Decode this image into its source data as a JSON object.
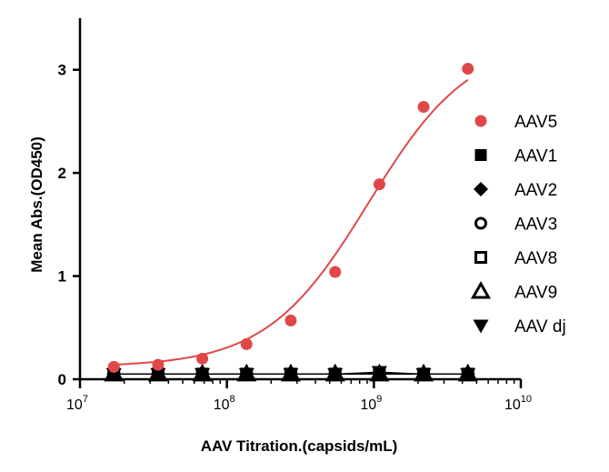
{
  "chart_data": {
    "type": "scatter",
    "xscale": "log",
    "xlabel": "AAV Titration.(capsids/mL)",
    "ylabel": "Mean Abs.(OD450)",
    "xlim": [
      10000000,
      10000000000
    ],
    "ylim": [
      0,
      3.5
    ],
    "xticks": [
      {
        "base": "10",
        "exp": "7",
        "value": 10000000
      },
      {
        "base": "10",
        "exp": "8",
        "value": 100000000
      },
      {
        "base": "10",
        "exp": "9",
        "value": 1000000000
      },
      {
        "base": "10",
        "exp": "10",
        "value": 10000000000
      }
    ],
    "yticks": [
      {
        "label": "0",
        "value": 0
      },
      {
        "label": "1",
        "value": 1
      },
      {
        "label": "2",
        "value": 2
      },
      {
        "label": "3",
        "value": 3
      }
    ],
    "x": [
      17000000,
      34000000,
      68000000,
      136000000,
      272000000,
      545000000,
      1090000000,
      2180000000,
      4360000000
    ],
    "series": [
      {
        "name": "AAV5",
        "marker": "circle",
        "color": "#e04848",
        "fit_curve": true,
        "values": [
          0.12,
          0.14,
          0.2,
          0.34,
          0.57,
          1.04,
          1.89,
          2.64,
          3.01
        ]
      },
      {
        "name": "AAV1",
        "marker": "square-filled",
        "color": "#000000",
        "values": [
          0.05,
          0.05,
          0.05,
          0.05,
          0.05,
          0.05,
          0.06,
          0.05,
          0.05
        ]
      },
      {
        "name": "AAV2",
        "marker": "diamond",
        "color": "#000000",
        "values": [
          0.05,
          0.05,
          0.05,
          0.05,
          0.05,
          0.05,
          0.05,
          0.05,
          0.05
        ]
      },
      {
        "name": "AAV3",
        "marker": "circle-open",
        "color": "#000000",
        "values": [
          0.05,
          0.05,
          0.05,
          0.05,
          0.05,
          0.05,
          0.05,
          0.05,
          0.05
        ]
      },
      {
        "name": "AAV8",
        "marker": "square-open",
        "color": "#000000",
        "values": [
          0.05,
          0.05,
          0.05,
          0.05,
          0.05,
          0.05,
          0.05,
          0.05,
          0.05
        ]
      },
      {
        "name": "AAV9",
        "marker": "triangle-up",
        "color": "#000000",
        "values": [
          0.05,
          0.05,
          0.05,
          0.05,
          0.05,
          0.05,
          0.05,
          0.05,
          0.05
        ]
      },
      {
        "name": "AAV dj",
        "marker": "triangle-down",
        "color": "#000000",
        "values": [
          0.05,
          0.05,
          0.05,
          0.05,
          0.05,
          0.05,
          0.07,
          0.05,
          0.05
        ]
      }
    ],
    "legend": "right"
  }
}
